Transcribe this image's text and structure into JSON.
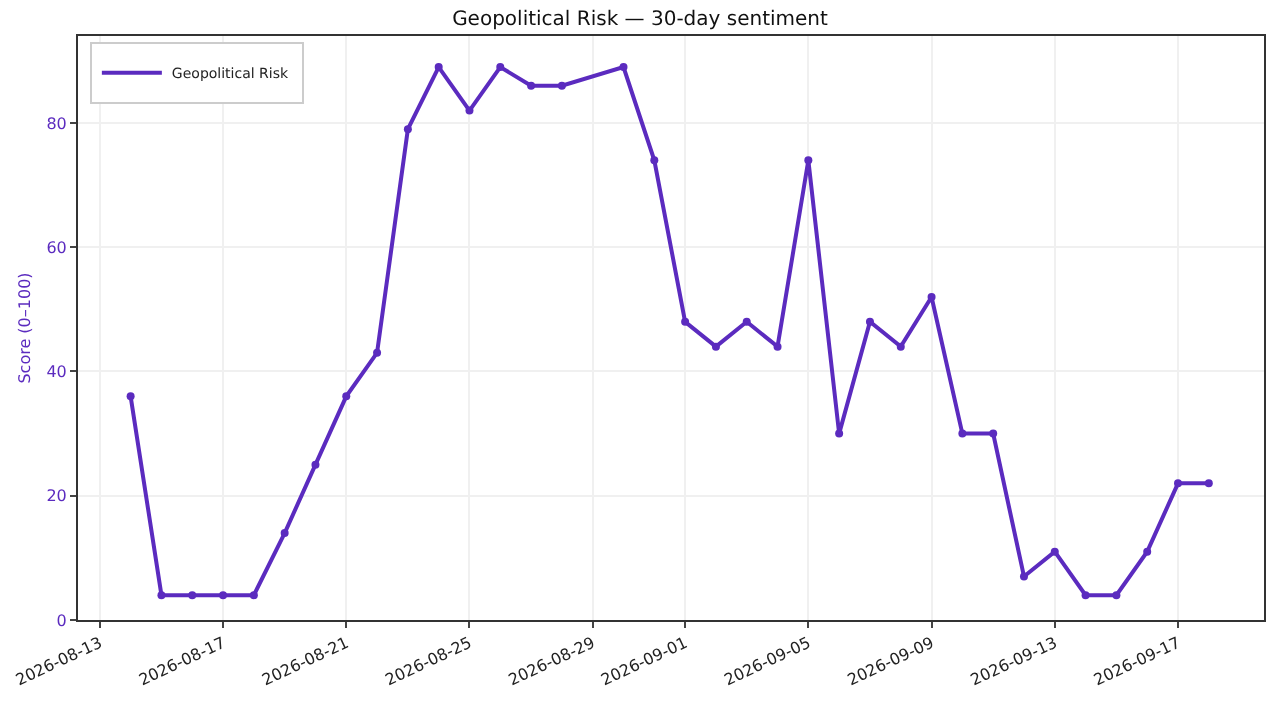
{
  "chart_data": {
    "type": "line",
    "title": "Geopolitical Risk — 30-day sentiment",
    "ylabel": "Score (0–100)",
    "x": [
      "2026-08-14",
      "2026-08-15",
      "2026-08-16",
      "2026-08-17",
      "2026-08-18",
      "2026-08-19",
      "2026-08-20",
      "2026-08-21",
      "2026-08-22",
      "2026-08-23",
      "2026-08-24",
      "2026-08-25",
      "2026-08-26",
      "2026-08-27",
      "2026-08-28",
      "2026-08-30",
      "2026-08-31",
      "2026-09-01",
      "2026-09-02",
      "2026-09-03",
      "2026-09-04",
      "2026-09-05",
      "2026-09-06",
      "2026-09-07",
      "2026-09-08",
      "2026-09-09",
      "2026-09-10",
      "2026-09-11",
      "2026-09-12",
      "2026-09-13",
      "2026-09-14",
      "2026-09-15",
      "2026-09-16",
      "2026-09-17",
      "2026-09-18"
    ],
    "series": [
      {
        "name": "Geopolitical Risk",
        "color": "#5b2bbf",
        "values": [
          36,
          4,
          4,
          4,
          4,
          14,
          25,
          36,
          43,
          79,
          89,
          82,
          89,
          86,
          86,
          89,
          74,
          48,
          44,
          48,
          44,
          74,
          30,
          48,
          44,
          52,
          30,
          30,
          7,
          11,
          4,
          4,
          11,
          22,
          22
        ]
      }
    ],
    "xlim": [
      "2026-08-12T07:00",
      "2026-09-19T19:00"
    ],
    "xticks": [
      "2026-08-13",
      "2026-08-17",
      "2026-08-21",
      "2026-08-25",
      "2026-08-29",
      "2026-09-01",
      "2026-09-05",
      "2026-09-09",
      "2026-09-13",
      "2026-09-17"
    ],
    "ylim": [
      0,
      94
    ],
    "yticks": [
      0,
      20,
      40,
      60,
      80
    ],
    "grid": true,
    "legend": "top left",
    "marker": "circle",
    "line_style": "solid"
  }
}
